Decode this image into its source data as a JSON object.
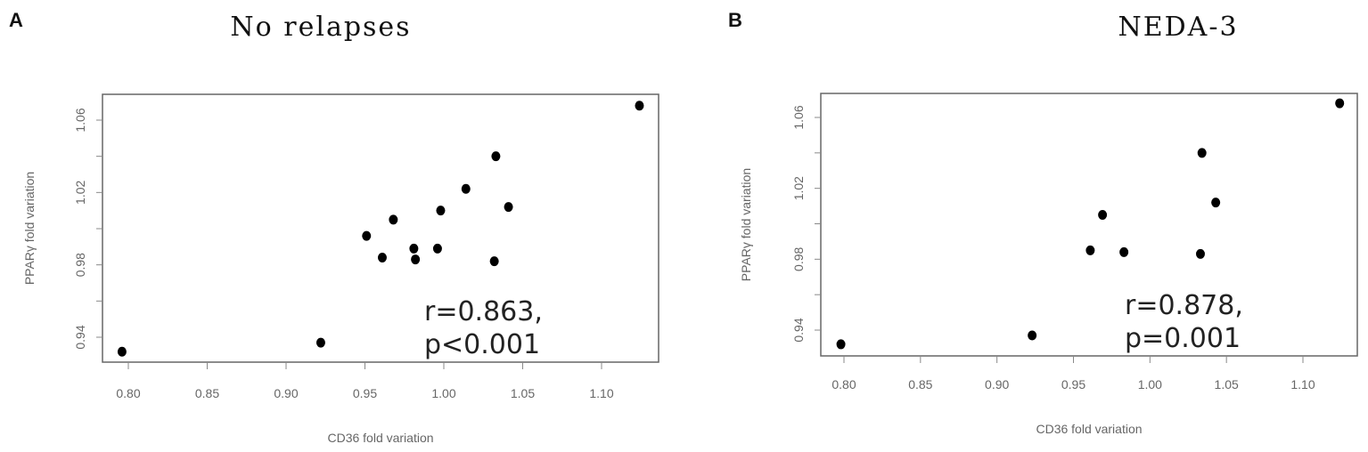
{
  "chart_data": [
    {
      "type": "scatter",
      "panel": "A",
      "title": "No relapses",
      "xlabel": "CD36 fold variation",
      "ylabel": "PPARγ fold variation",
      "xlim": [
        0.79,
        1.13
      ],
      "ylim": [
        0.925,
        1.072
      ],
      "xticks": [
        "0.80",
        "0.85",
        "0.90",
        "0.95",
        "1.00",
        "1.05",
        "1.10"
      ],
      "yticks": [
        "0.94",
        "0.98",
        "1.02",
        "1.06"
      ],
      "annotation": [
        "r=0.863,",
        "p<0.001"
      ],
      "grid": false,
      "points": [
        {
          "x": 0.796,
          "y": 0.932
        },
        {
          "x": 0.922,
          "y": 0.937
        },
        {
          "x": 0.951,
          "y": 0.996
        },
        {
          "x": 0.961,
          "y": 0.984
        },
        {
          "x": 0.968,
          "y": 1.005
        },
        {
          "x": 0.981,
          "y": 0.989
        },
        {
          "x": 0.982,
          "y": 0.983
        },
        {
          "x": 0.996,
          "y": 0.989
        },
        {
          "x": 0.998,
          "y": 1.01
        },
        {
          "x": 1.014,
          "y": 1.022
        },
        {
          "x": 1.033,
          "y": 1.04
        },
        {
          "x": 1.032,
          "y": 0.982
        },
        {
          "x": 1.041,
          "y": 1.012
        },
        {
          "x": 1.124,
          "y": 1.068
        }
      ]
    },
    {
      "type": "scatter",
      "panel": "B",
      "title": "NEDA-3",
      "xlabel": "CD36 fold variation",
      "ylabel": "PPARγ fold variation",
      "xlim": [
        0.79,
        1.13
      ],
      "ylim": [
        0.925,
        1.072
      ],
      "xticks": [
        "0.80",
        "0.85",
        "0.90",
        "0.95",
        "1.00",
        "1.05",
        "1.10"
      ],
      "yticks": [
        "0.94",
        "0.98",
        "1.02",
        "1.06"
      ],
      "annotation": [
        "r=0.878,",
        "p=0.001"
      ],
      "grid": false,
      "points": [
        {
          "x": 0.798,
          "y": 0.932
        },
        {
          "x": 0.923,
          "y": 0.937
        },
        {
          "x": 0.961,
          "y": 0.985
        },
        {
          "x": 0.969,
          "y": 1.005
        },
        {
          "x": 0.983,
          "y": 0.984
        },
        {
          "x": 1.033,
          "y": 0.983
        },
        {
          "x": 1.034,
          "y": 1.04
        },
        {
          "x": 1.043,
          "y": 1.012
        },
        {
          "x": 1.124,
          "y": 1.068
        }
      ]
    }
  ]
}
